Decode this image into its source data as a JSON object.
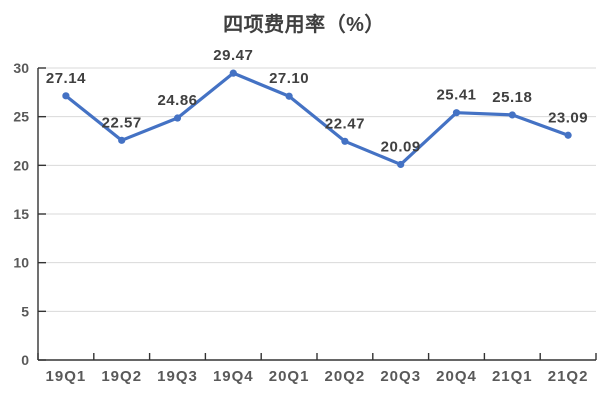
{
  "chart_data": {
    "type": "line",
    "title": "四项费用率（%）",
    "categories": [
      "19Q1",
      "19Q2",
      "19Q3",
      "19Q4",
      "20Q1",
      "20Q2",
      "20Q3",
      "20Q4",
      "21Q1",
      "21Q2"
    ],
    "values": [
      27.14,
      22.57,
      24.86,
      29.47,
      27.1,
      22.47,
      20.09,
      25.41,
      25.18,
      23.09
    ],
    "data_labels": [
      "27.14",
      "22.57",
      "24.86",
      "29.47",
      "27.10",
      "22.47",
      "20.09",
      "25.41",
      "25.18",
      "23.09"
    ],
    "ylim": [
      0,
      30
    ],
    "ytick_step": 5,
    "ytick_labels": [
      "0",
      "5",
      "10",
      "15",
      "20",
      "25",
      "30"
    ],
    "grid": true,
    "legend": "none",
    "colors": {
      "line": "#4472C4",
      "marker": "#4472C4",
      "gridline": "#D9D9D9",
      "axis": "#333333",
      "title": "#3f3f3f",
      "data_label": "#404040",
      "tick_label": "#595959"
    }
  }
}
